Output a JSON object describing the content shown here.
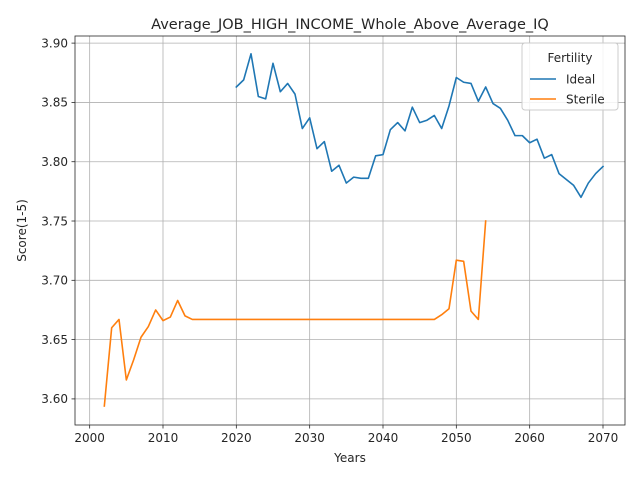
{
  "chart_data": {
    "type": "line",
    "title": "Average_JOB_HIGH_INCOME_Whole_Above_Average_IQ",
    "xlabel": "Years",
    "ylabel": "Score(1-5)",
    "xlim": [
      1998,
      2073
    ],
    "ylim": [
      3.578,
      3.906
    ],
    "xticks": [
      2000,
      2010,
      2020,
      2030,
      2040,
      2050,
      2060,
      2070
    ],
    "xtick_labels": [
      "2000",
      "2010",
      "2020",
      "2030",
      "2040",
      "2050",
      "2060",
      "2070"
    ],
    "yticks": [
      3.6,
      3.65,
      3.7,
      3.75,
      3.8,
      3.85,
      3.9
    ],
    "ytick_labels": [
      "3.60",
      "3.65",
      "3.70",
      "3.75",
      "3.80",
      "3.85",
      "3.90"
    ],
    "grid": true,
    "legend": {
      "title": "Fertility",
      "position": "top-right"
    },
    "series": [
      {
        "name": "Ideal",
        "color": "#1f77b4",
        "x": [
          2020,
          2021,
          2022,
          2023,
          2024,
          2025,
          2026,
          2027,
          2028,
          2029,
          2030,
          2031,
          2032,
          2033,
          2034,
          2035,
          2036,
          2037,
          2038,
          2039,
          2040,
          2041,
          2042,
          2043,
          2044,
          2045,
          2046,
          2047,
          2048,
          2049,
          2050,
          2051,
          2052,
          2053,
          2054,
          2055,
          2056,
          2057,
          2058,
          2059,
          2060,
          2061,
          2062,
          2063,
          2064,
          2065,
          2066,
          2067,
          2068,
          2069,
          2070
        ],
        "y": [
          3.863,
          3.869,
          3.891,
          3.855,
          3.853,
          3.883,
          3.859,
          3.866,
          3.857,
          3.828,
          3.837,
          3.811,
          3.817,
          3.792,
          3.797,
          3.782,
          3.787,
          3.786,
          3.786,
          3.805,
          3.806,
          3.827,
          3.833,
          3.826,
          3.846,
          3.833,
          3.835,
          3.839,
          3.828,
          3.847,
          3.871,
          3.867,
          3.866,
          3.851,
          3.863,
          3.849,
          3.845,
          3.835,
          3.822,
          3.822,
          3.816,
          3.819,
          3.803,
          3.806,
          3.79,
          3.785,
          3.78,
          3.77,
          3.782,
          3.79,
          3.796
        ]
      },
      {
        "name": "Sterile",
        "color": "#ff7f0e",
        "x": [
          2002,
          2003,
          2004,
          2005,
          2006,
          2007,
          2008,
          2009,
          2010,
          2011,
          2012,
          2013,
          2014,
          2015,
          2016,
          2017,
          2018,
          2019,
          2020,
          2021,
          2022,
          2023,
          2024,
          2025,
          2026,
          2027,
          2028,
          2029,
          2030,
          2031,
          2032,
          2033,
          2034,
          2035,
          2036,
          2037,
          2038,
          2039,
          2040,
          2041,
          2042,
          2043,
          2044,
          2045,
          2046,
          2047,
          2048,
          2049,
          2050,
          2051,
          2052,
          2053,
          2054
        ],
        "y": [
          3.594,
          3.66,
          3.667,
          3.616,
          3.633,
          3.652,
          3.661,
          3.675,
          3.666,
          3.669,
          3.683,
          3.67,
          3.667,
          3.667,
          3.667,
          3.667,
          3.667,
          3.667,
          3.667,
          3.667,
          3.667,
          3.667,
          3.667,
          3.667,
          3.667,
          3.667,
          3.667,
          3.667,
          3.667,
          3.667,
          3.667,
          3.667,
          3.667,
          3.667,
          3.667,
          3.667,
          3.667,
          3.667,
          3.667,
          3.667,
          3.667,
          3.667,
          3.667,
          3.667,
          3.667,
          3.667,
          3.671,
          3.676,
          3.717,
          3.716,
          3.674,
          3.667,
          3.75
        ]
      }
    ]
  }
}
